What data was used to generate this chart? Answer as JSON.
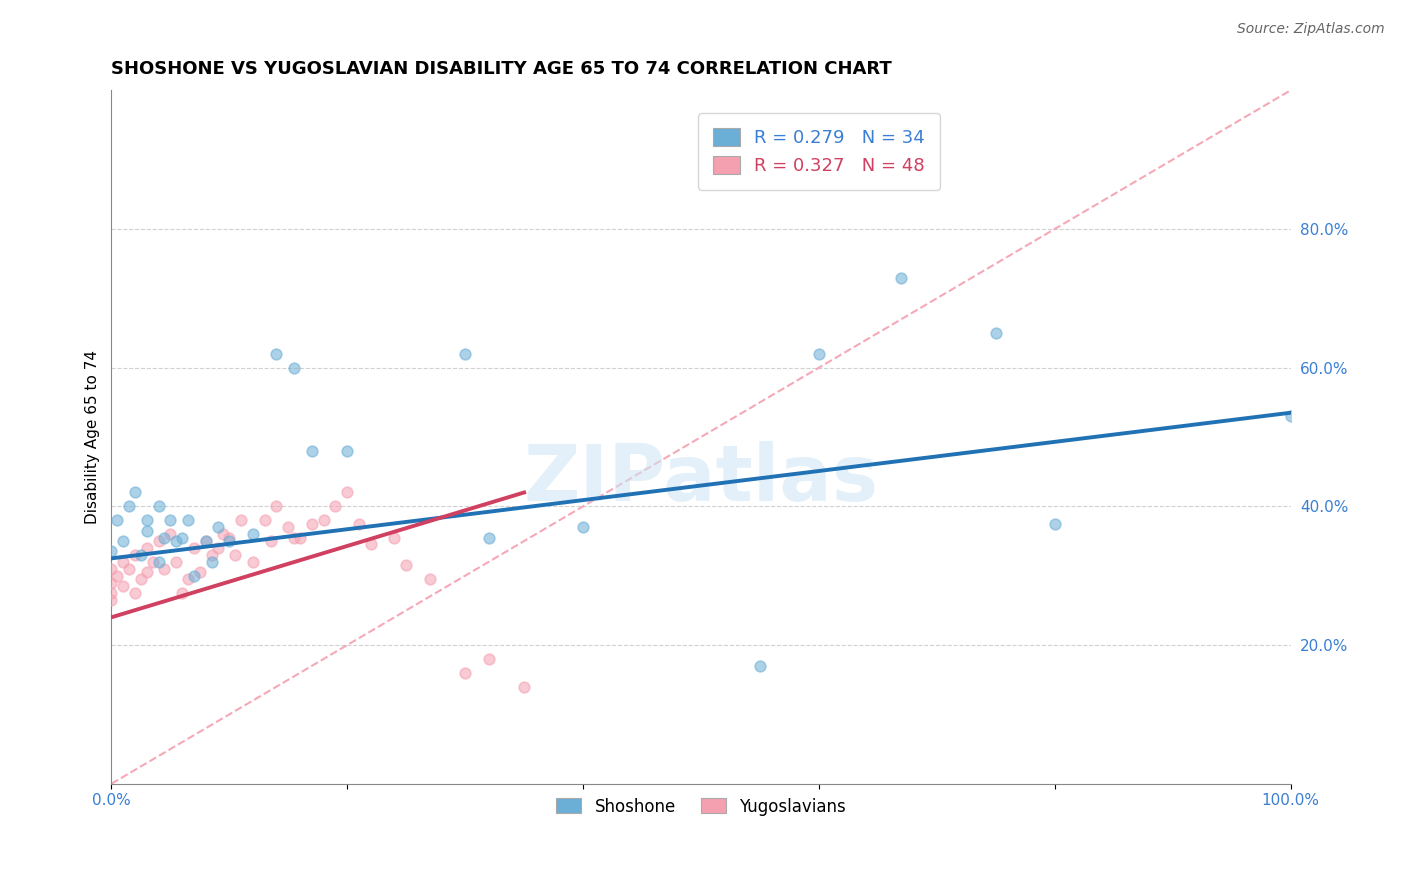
{
  "title": "SHOSHONE VS YUGOSLAVIAN DISABILITY AGE 65 TO 74 CORRELATION CHART",
  "source": "Source: ZipAtlas.com",
  "ylabel": "Disability Age 65 to 74",
  "watermark": "ZIPatlas",
  "shoshone": {
    "label": "Shoshone",
    "R": 0.279,
    "N": 34,
    "color": "#6baed6",
    "line_color": "#2171b5",
    "x": [
      0.0,
      0.005,
      0.01,
      0.015,
      0.02,
      0.025,
      0.03,
      0.03,
      0.04,
      0.04,
      0.045,
      0.05,
      0.055,
      0.06,
      0.065,
      0.07,
      0.08,
      0.085,
      0.09,
      0.1,
      0.12,
      0.14,
      0.155,
      0.17,
      0.2,
      0.3,
      0.32,
      0.4,
      0.55,
      0.6,
      0.67,
      0.75,
      0.8,
      1.0
    ],
    "y": [
      0.335,
      0.38,
      0.35,
      0.4,
      0.42,
      0.33,
      0.365,
      0.38,
      0.32,
      0.4,
      0.355,
      0.38,
      0.35,
      0.355,
      0.38,
      0.3,
      0.35,
      0.32,
      0.37,
      0.35,
      0.36,
      0.62,
      0.6,
      0.48,
      0.48,
      0.62,
      0.355,
      0.37,
      0.17,
      0.62,
      0.73,
      0.65,
      0.375,
      0.53
    ],
    "line_x": [
      0.0,
      1.0
    ],
    "line_y": [
      0.325,
      0.535
    ]
  },
  "yugoslavian": {
    "label": "Yugoslavians",
    "R": 0.327,
    "N": 48,
    "color": "#f4a0b0",
    "line_color": "#d04060",
    "x": [
      0.0,
      0.0,
      0.0,
      0.0,
      0.005,
      0.01,
      0.01,
      0.015,
      0.02,
      0.02,
      0.025,
      0.03,
      0.03,
      0.035,
      0.04,
      0.045,
      0.05,
      0.055,
      0.06,
      0.065,
      0.07,
      0.075,
      0.08,
      0.085,
      0.09,
      0.095,
      0.1,
      0.105,
      0.11,
      0.12,
      0.13,
      0.135,
      0.14,
      0.15,
      0.155,
      0.16,
      0.17,
      0.18,
      0.19,
      0.2,
      0.21,
      0.22,
      0.24,
      0.25,
      0.27,
      0.3,
      0.32,
      0.35
    ],
    "y": [
      0.29,
      0.31,
      0.275,
      0.265,
      0.3,
      0.32,
      0.285,
      0.31,
      0.275,
      0.33,
      0.295,
      0.34,
      0.305,
      0.32,
      0.35,
      0.31,
      0.36,
      0.32,
      0.275,
      0.295,
      0.34,
      0.305,
      0.35,
      0.33,
      0.34,
      0.36,
      0.355,
      0.33,
      0.38,
      0.32,
      0.38,
      0.35,
      0.4,
      0.37,
      0.355,
      0.355,
      0.375,
      0.38,
      0.4,
      0.42,
      0.375,
      0.345,
      0.355,
      0.315,
      0.295,
      0.16,
      0.18,
      0.14
    ],
    "line_x": [
      0.0,
      0.35
    ],
    "line_y": [
      0.24,
      0.42
    ]
  },
  "diagonal": {
    "x": [
      0.0,
      1.0
    ],
    "y": [
      0.0,
      1.0
    ],
    "color": "#f4a0b0",
    "style": "--"
  },
  "xlim": [
    0.0,
    1.0
  ],
  "ylim": [
    0.0,
    1.0
  ],
  "xticks": [
    0.0,
    0.2,
    0.4,
    0.6,
    0.8,
    1.0
  ],
  "xticklabels": [
    "0.0%",
    "",
    "",
    "",
    "",
    "100.0%"
  ],
  "yticks": [
    0.2,
    0.4,
    0.6,
    0.8
  ],
  "yticklabels": [
    "20.0%",
    "40.0%",
    "60.0%",
    "80.0%"
  ],
  "grid_color": "#cccccc",
  "background_color": "#ffffff",
  "title_fontsize": 13,
  "axis_label_fontsize": 11,
  "tick_fontsize": 11,
  "source_fontsize": 10,
  "r_label_color_blue": "#3a7fd5",
  "r_label_color_pink": "#d04060",
  "r_n_fontsize": 13
}
